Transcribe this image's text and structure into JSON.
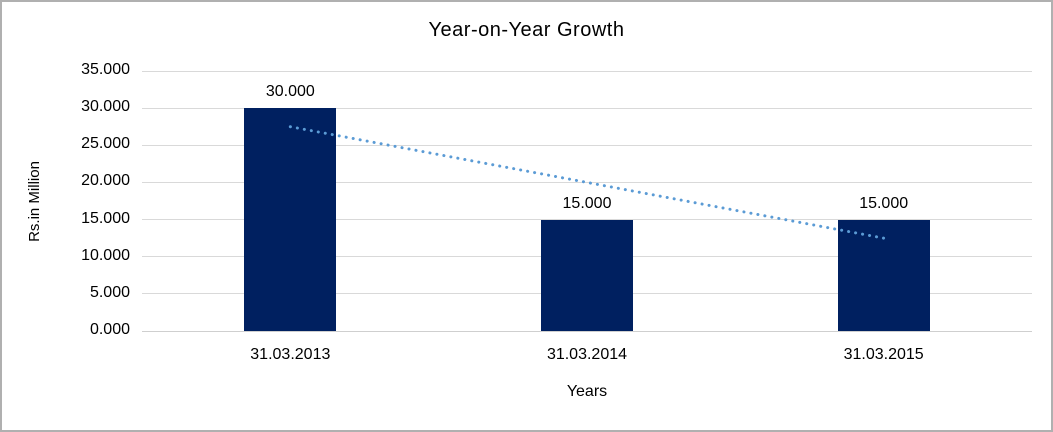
{
  "window": {
    "background": "#ffffff",
    "border_color": "#b0b0b0"
  },
  "chart_data": {
    "type": "bar",
    "title": "Year-on-Year Growth",
    "xlabel": "Years",
    "ylabel": "Rs.in Million",
    "categories": [
      "31.03.2013",
      "31.03.2014",
      "31.03.2015"
    ],
    "values": [
      30,
      15,
      15
    ],
    "data_labels": [
      "30.000",
      "15.000",
      "15.000"
    ],
    "ylim": [
      0,
      35
    ],
    "ytick_step": 5,
    "ytick_labels": [
      "0.000",
      "5.000",
      "10.000",
      "15.000",
      "20.000",
      "25.000",
      "30.000",
      "35.000"
    ],
    "grid": true,
    "legend": "none",
    "bar_color": "#002060",
    "gridline_color": "#d9d9d9",
    "trendline": {
      "type": "linear",
      "style": "dotted",
      "color": "#5b9bd5",
      "start_value": 27.5,
      "end_value": 12.5
    }
  }
}
